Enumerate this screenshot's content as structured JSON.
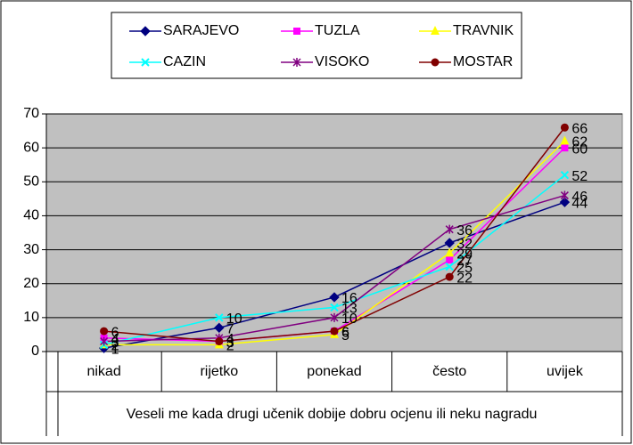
{
  "chart_data": {
    "type": "line",
    "categories": [
      "nikad",
      "rijetko",
      "ponekad",
      "često",
      "uvijek"
    ],
    "x_label": "Veseli me kada drugi učenik dobije dobru ocjenu ili neku nagradu",
    "series": [
      {
        "name": "SARAJEVO",
        "color": "#000080",
        "marker": "diamond",
        "values": [
          1,
          7,
          16,
          32,
          44
        ]
      },
      {
        "name": "TUZLA",
        "color": "#ff00ff",
        "marker": "square",
        "values": [
          4,
          3,
          6,
          27,
          60
        ]
      },
      {
        "name": "TRAVNIK",
        "color": "#ffff00",
        "marker": "triangle",
        "values": [
          2,
          2,
          5,
          29,
          62
        ]
      },
      {
        "name": "CAZIN",
        "color": "#00ffff",
        "marker": "x",
        "values": [
          2,
          10,
          13,
          25,
          52
        ]
      },
      {
        "name": "VISOKO",
        "color": "#800080",
        "marker": "star",
        "values": [
          3,
          4,
          10,
          36,
          46
        ]
      },
      {
        "name": "MOSTAR",
        "color": "#800000",
        "marker": "circle",
        "values": [
          6,
          3,
          6,
          22,
          66
        ]
      }
    ],
    "ylim": [
      0,
      70
    ],
    "yticks": [
      0,
      10,
      20,
      30,
      40,
      50,
      60,
      70
    ],
    "grid": true,
    "legend": "top"
  }
}
